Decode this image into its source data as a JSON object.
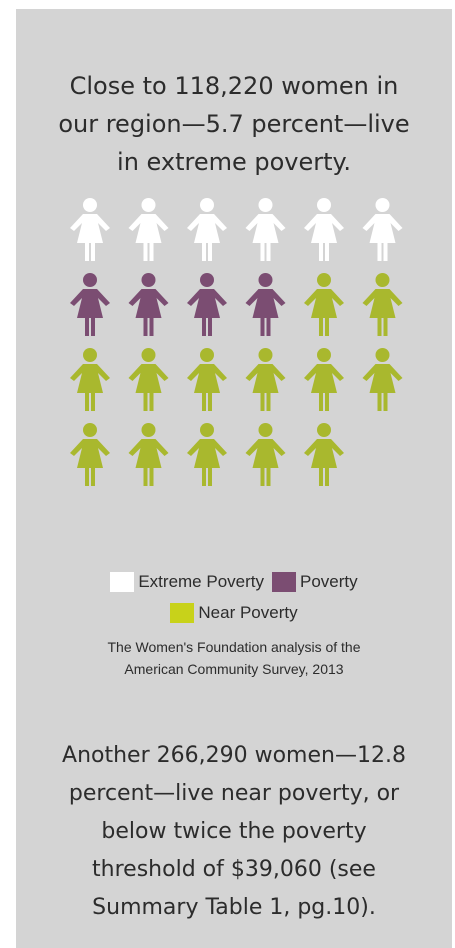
{
  "headline": {
    "lines": [
      "Close to 118,220 women in",
      "our region—5.7 percent—live",
      "in extreme poverty."
    ]
  },
  "chart_data": {
    "type": "pictograph",
    "icon": "woman-icon",
    "categories": [
      "Extreme Poverty",
      "Poverty",
      "Near Poverty"
    ],
    "values": [
      6,
      4,
      13
    ],
    "colors": [
      "#ffffff",
      "#7b4d72",
      "#a9b82e"
    ],
    "swatch_colors": [
      "#ffffff",
      "#7b4d72",
      "#c8d21a"
    ],
    "icons_per_row": 6
  },
  "source": {
    "lines": [
      "The Women's Foundation analysis of the",
      "American Community Survey, 2013"
    ]
  },
  "bottom_text": {
    "lines": [
      "Another 266,290 women—12.8",
      "percent—live near poverty, or",
      "below twice the poverty",
      "threshold of $39,060 (see",
      "Summary Table 1, pg.10)."
    ]
  }
}
